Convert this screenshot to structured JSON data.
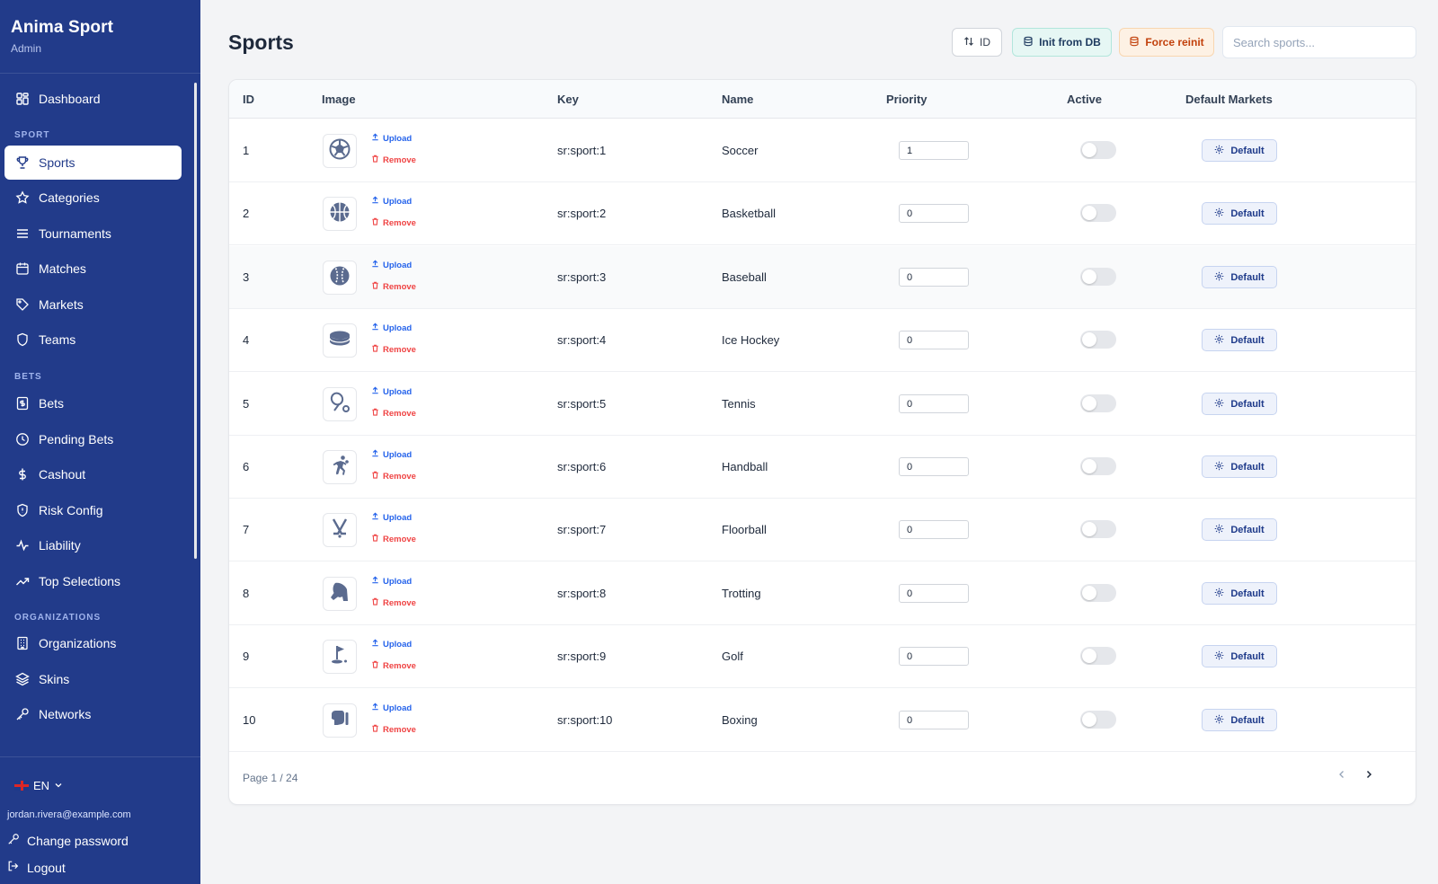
{
  "brand": {
    "title": "Anima Sport",
    "subtitle": "Admin"
  },
  "nav": {
    "dashboard": "Dashboard",
    "section_sport": "SPORT",
    "sports": "Sports",
    "categories": "Categories",
    "tournaments": "Tournaments",
    "matches": "Matches",
    "markets": "Markets",
    "teams": "Teams",
    "section_bets": "BETS",
    "bets": "Bets",
    "pending_bets": "Pending Bets",
    "cashout": "Cashout",
    "risk_config": "Risk Config",
    "liability": "Liability",
    "top_selections": "Top Selections",
    "section_orgs": "ORGANIZATIONS",
    "organizations": "Organizations",
    "skins": "Skins",
    "networks": "Networks",
    "active_item": "Sports"
  },
  "footer_side": {
    "language": "EN",
    "email": "jordan.rivera@example.com",
    "change_password": "Change password",
    "logout": "Logout"
  },
  "header": {
    "title": "Sports",
    "sort_label": "ID",
    "init_label": "Init from DB",
    "force_label": "Force reinit",
    "search_placeholder": "Search sports..."
  },
  "table": {
    "columns": {
      "id": "ID",
      "image": "Image",
      "key": "Key",
      "name": "Name",
      "priority": "Priority",
      "active": "Active",
      "markets": "Default Markets"
    },
    "upload_label": "Upload",
    "remove_label": "Remove",
    "default_label": "Default",
    "rows": [
      {
        "id": "1",
        "key": "sr:sport:1",
        "name": "Soccer",
        "priority": "1",
        "active": false,
        "icon": "soccer-ball-icon"
      },
      {
        "id": "2",
        "key": "sr:sport:2",
        "name": "Basketball",
        "priority": "0",
        "active": false,
        "icon": "basketball-icon"
      },
      {
        "id": "3",
        "key": "sr:sport:3",
        "name": "Baseball",
        "priority": "0",
        "active": false,
        "icon": "baseball-icon"
      },
      {
        "id": "4",
        "key": "sr:sport:4",
        "name": "Ice Hockey",
        "priority": "0",
        "active": false,
        "icon": "hockey-puck-icon"
      },
      {
        "id": "5",
        "key": "sr:sport:5",
        "name": "Tennis",
        "priority": "0",
        "active": false,
        "icon": "tennis-racket-icon"
      },
      {
        "id": "6",
        "key": "sr:sport:6",
        "name": "Handball",
        "priority": "0",
        "active": false,
        "icon": "handball-player-icon"
      },
      {
        "id": "7",
        "key": "sr:sport:7",
        "name": "Floorball",
        "priority": "0",
        "active": false,
        "icon": "floorball-sticks-icon"
      },
      {
        "id": "8",
        "key": "sr:sport:8",
        "name": "Trotting",
        "priority": "0",
        "active": false,
        "icon": "horse-head-icon"
      },
      {
        "id": "9",
        "key": "sr:sport:9",
        "name": "Golf",
        "priority": "0",
        "active": false,
        "icon": "golf-flag-icon"
      },
      {
        "id": "10",
        "key": "sr:sport:10",
        "name": "Boxing",
        "priority": "0",
        "active": false,
        "icon": "boxing-glove-icon"
      }
    ],
    "pagination": "Page 1 / 24"
  },
  "colors": {
    "sidebar": "#223b8a",
    "accent": "#2563eb",
    "danger": "#ef4444",
    "background": "#f3f4f6"
  }
}
